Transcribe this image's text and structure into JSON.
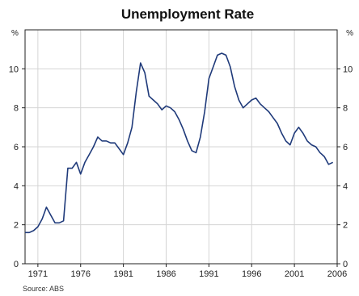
{
  "chart_data": {
    "type": "line",
    "title": "Unemployment Rate",
    "y_unit_left": "%",
    "y_unit_right": "%",
    "source": "Source: ABS",
    "xlim": [
      1969.5,
      2006
    ],
    "ylim": [
      0,
      12
    ],
    "x_ticks": [
      1971,
      1976,
      1981,
      1986,
      1991,
      1996,
      2001,
      2006
    ],
    "y_ticks": [
      0,
      2,
      4,
      6,
      8,
      10
    ],
    "grid": true,
    "series": [
      {
        "color": "#1f3a7a",
        "x": [
          1969.5,
          1970.0,
          1970.5,
          1971.0,
          1971.5,
          1972.0,
          1972.5,
          1973.0,
          1973.5,
          1974.0,
          1974.5,
          1975.0,
          1975.5,
          1976.0,
          1976.5,
          1977.0,
          1977.5,
          1978.0,
          1978.5,
          1979.0,
          1979.5,
          1980.0,
          1980.5,
          1981.0,
          1981.5,
          1982.0,
          1982.5,
          1983.0,
          1983.5,
          1984.0,
          1984.5,
          1985.0,
          1985.5,
          1986.0,
          1986.5,
          1987.0,
          1987.5,
          1988.0,
          1988.5,
          1989.0,
          1989.5,
          1990.0,
          1990.5,
          1991.0,
          1991.5,
          1992.0,
          1992.5,
          1993.0,
          1993.5,
          1994.0,
          1994.5,
          1995.0,
          1995.5,
          1996.0,
          1996.5,
          1997.0,
          1997.5,
          1998.0,
          1998.5,
          1999.0,
          1999.5,
          2000.0,
          2000.5,
          2001.0,
          2001.5,
          2002.0,
          2002.5,
          2003.0,
          2003.5,
          2004.0,
          2004.5,
          2005.0,
          2005.5
        ],
        "y": [
          1.6,
          1.6,
          1.7,
          1.9,
          2.3,
          2.9,
          2.5,
          2.1,
          2.1,
          2.2,
          4.9,
          4.9,
          5.2,
          4.6,
          5.2,
          5.6,
          6.0,
          6.5,
          6.3,
          6.3,
          6.2,
          6.2,
          5.9,
          5.6,
          6.2,
          7.0,
          8.8,
          10.3,
          9.8,
          8.6,
          8.4,
          8.2,
          7.9,
          8.1,
          8.0,
          7.8,
          7.4,
          6.9,
          6.3,
          5.8,
          5.7,
          6.5,
          7.8,
          9.5,
          10.1,
          10.7,
          10.8,
          10.7,
          10.1,
          9.1,
          8.4,
          8.0,
          8.2,
          8.4,
          8.5,
          8.2,
          8.0,
          7.8,
          7.5,
          7.2,
          6.7,
          6.3,
          6.1,
          6.7,
          7.0,
          6.7,
          6.3,
          6.1,
          6.0,
          5.7,
          5.5,
          5.1,
          5.2
        ]
      }
    ]
  }
}
